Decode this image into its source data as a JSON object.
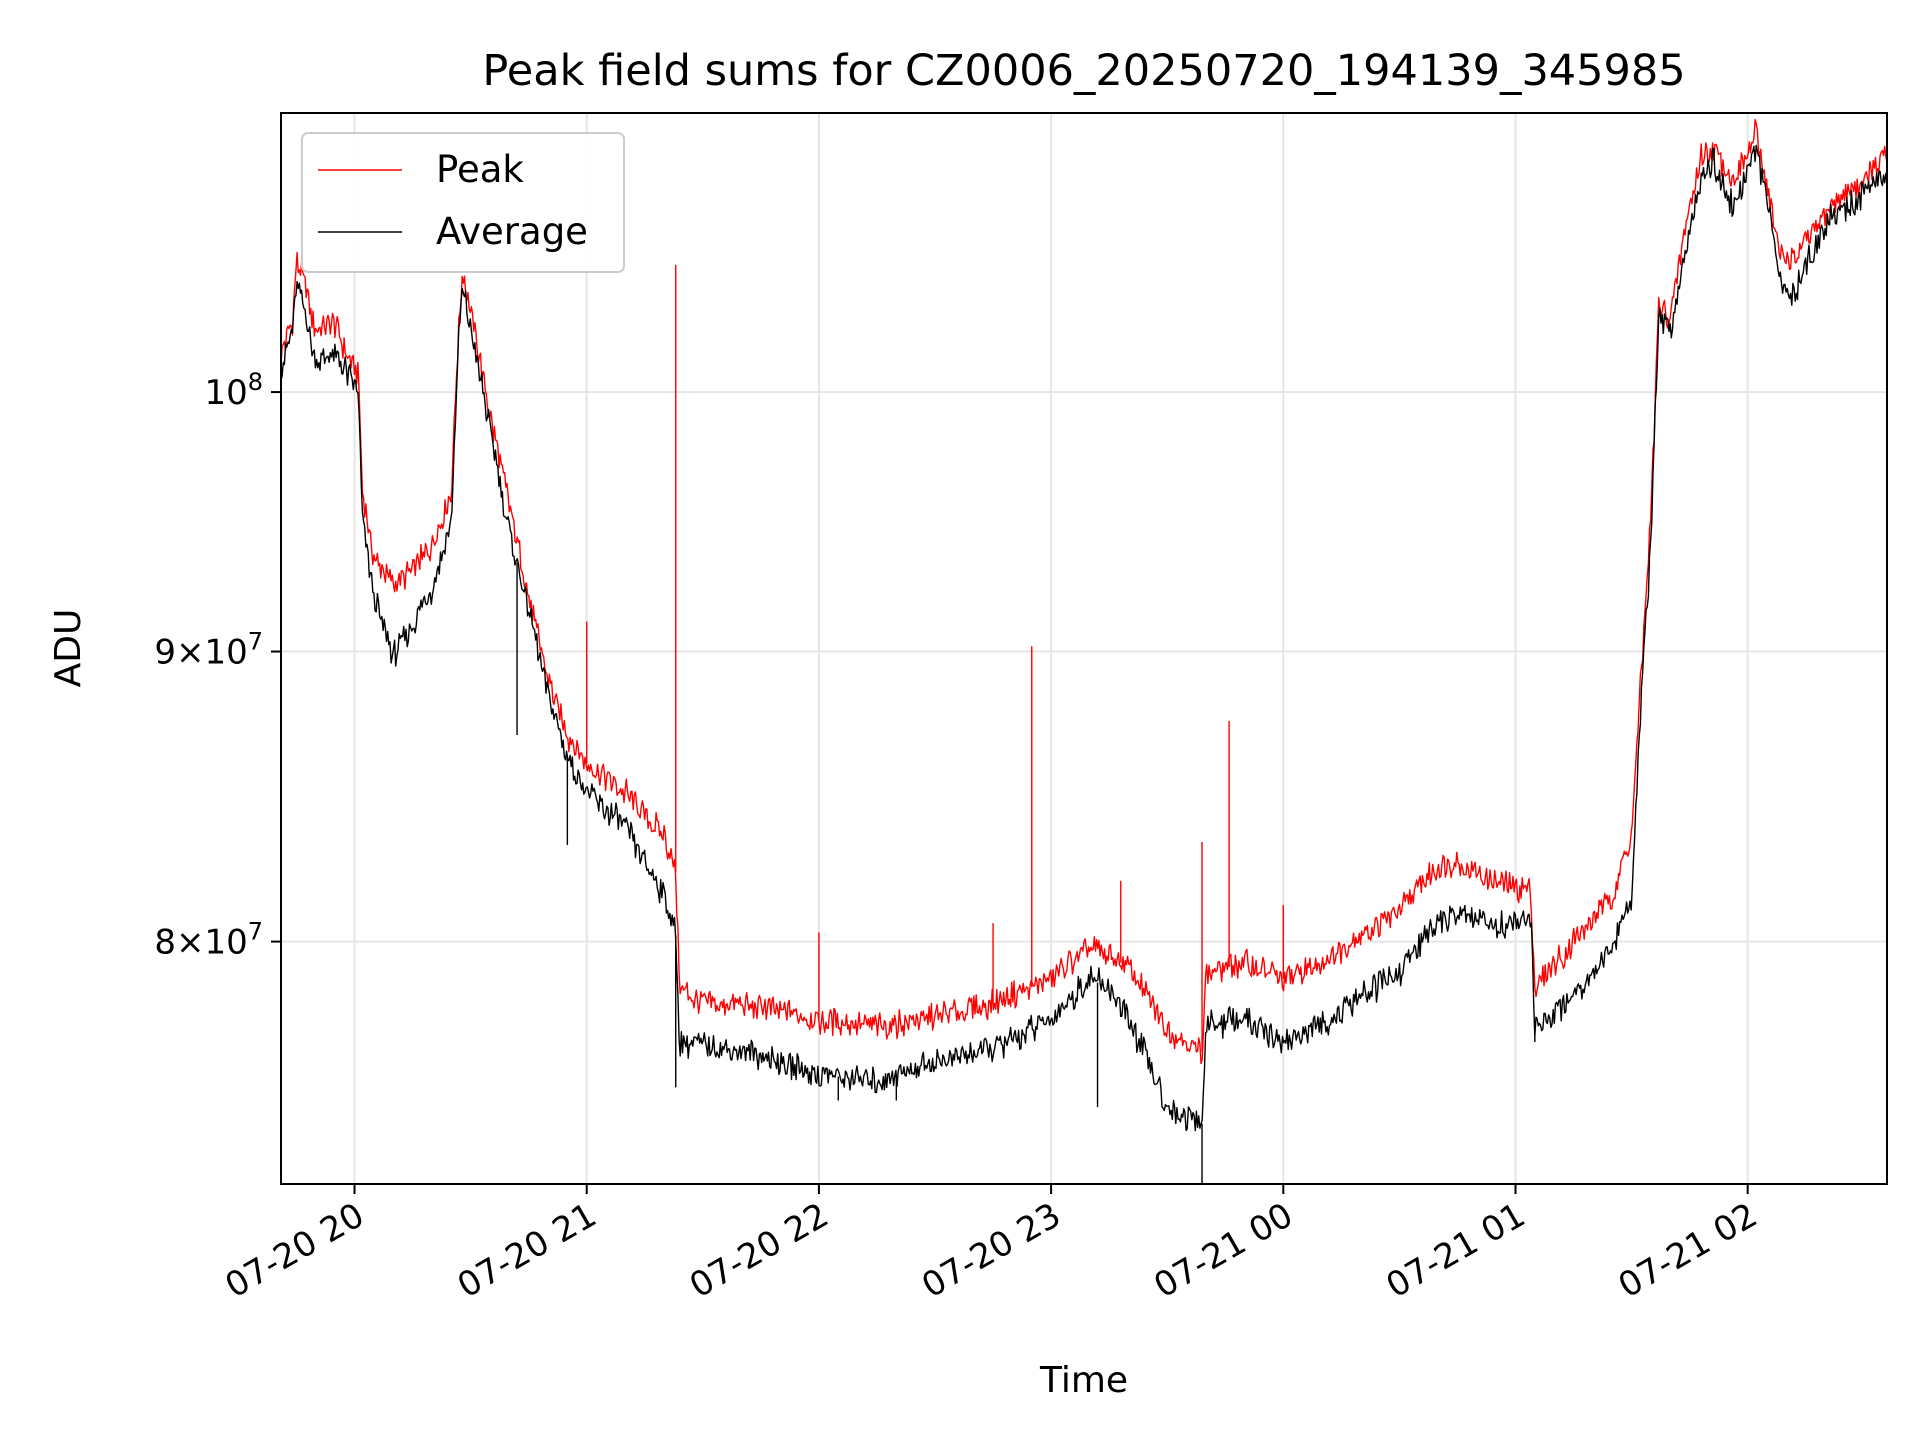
{
  "chart_data": {
    "type": "line",
    "title": "Peak field sums for CZ0006_20250720_194139_345985",
    "xlabel": "Time",
    "ylabel": "ADU",
    "y_scale": "log",
    "xlim": [
      "2025-07-20T19:41",
      "2025-07-21T02:36"
    ],
    "ylim": [
      72500000,
      112000000
    ],
    "x_ticks": [
      {
        "value": "2025-07-20T20:00",
        "label": "07-20 20"
      },
      {
        "value": "2025-07-20T21:00",
        "label": "07-20 21"
      },
      {
        "value": "2025-07-20T22:00",
        "label": "07-20 22"
      },
      {
        "value": "2025-07-20T23:00",
        "label": "07-20 23"
      },
      {
        "value": "2025-07-21T00:00",
        "label": "07-21 00"
      },
      {
        "value": "2025-07-21T01:00",
        "label": "07-21 01"
      },
      {
        "value": "2025-07-21T02:00",
        "label": "07-21 02"
      }
    ],
    "y_ticks": [
      {
        "value": 80000000,
        "label": "8×10⁷",
        "mantissa": "8",
        "exponent": "7"
      },
      {
        "value": 90000000,
        "label": "9×10⁷",
        "mantissa": "9",
        "exponent": "7"
      },
      {
        "value": 100000000,
        "label": "10⁸",
        "mantissa": "",
        "exponent": "8"
      }
    ],
    "grid": true,
    "legend_position": "upper-left",
    "series": [
      {
        "name": "Peak",
        "color": "#ff0000",
        "points": [
          [
            "2025-07-20T19:41",
            101500000
          ],
          [
            "2025-07-20T19:44",
            103000000
          ],
          [
            "2025-07-20T19:45",
            105500000
          ],
          [
            "2025-07-20T19:47",
            104500000
          ],
          [
            "2025-07-20T19:50",
            102500000
          ],
          [
            "2025-07-20T19:55",
            102800000
          ],
          [
            "2025-07-20T19:58",
            101500000
          ],
          [
            "2025-07-20T20:01",
            100800000
          ],
          [
            "2025-07-20T20:02",
            96000000
          ],
          [
            "2025-07-20T20:05",
            93500000
          ],
          [
            "2025-07-20T20:10",
            92500000
          ],
          [
            "2025-07-20T20:15",
            93000000
          ],
          [
            "2025-07-20T20:20",
            94000000
          ],
          [
            "2025-07-20T20:25",
            96000000
          ],
          [
            "2025-07-20T20:27",
            103000000
          ],
          [
            "2025-07-20T20:28",
            105000000
          ],
          [
            "2025-07-20T20:31",
            102500000
          ],
          [
            "2025-07-20T20:35",
            99000000
          ],
          [
            "2025-07-20T20:40",
            95500000
          ],
          [
            "2025-07-20T20:45",
            92000000
          ],
          [
            "2025-07-20T20:50",
            89000000
          ],
          [
            "2025-07-20T20:55",
            87000000
          ],
          [
            "2025-07-20T21:00",
            86000000
          ],
          [
            "2025-07-20T21:10",
            85000000
          ],
          [
            "2025-07-20T21:20",
            83500000
          ],
          [
            "2025-07-20T21:23",
            82300000
          ],
          [
            "2025-07-20T21:24",
            78500000
          ],
          [
            "2025-07-20T21:30",
            78000000
          ],
          [
            "2025-07-20T21:45",
            77900000
          ],
          [
            "2025-07-20T22:00",
            77500000
          ],
          [
            "2025-07-20T22:15",
            77300000
          ],
          [
            "2025-07-20T22:30",
            77600000
          ],
          [
            "2025-07-20T22:45",
            78000000
          ],
          [
            "2025-07-20T23:00",
            78800000
          ],
          [
            "2025-07-20T23:10",
            79800000
          ],
          [
            "2025-07-20T23:15",
            79500000
          ],
          [
            "2025-07-20T23:20",
            79200000
          ],
          [
            "2025-07-20T23:25",
            78200000
          ],
          [
            "2025-07-20T23:30",
            77200000
          ],
          [
            "2025-07-20T23:39",
            76500000
          ],
          [
            "2025-07-20T23:40",
            79000000
          ],
          [
            "2025-07-20T23:50",
            79300000
          ],
          [
            "2025-07-21T00:00",
            78800000
          ],
          [
            "2025-07-21T00:10",
            79300000
          ],
          [
            "2025-07-21T00:20",
            80200000
          ],
          [
            "2025-07-21T00:30",
            81000000
          ],
          [
            "2025-07-21T00:40",
            82500000
          ],
          [
            "2025-07-21T00:45",
            82600000
          ],
          [
            "2025-07-21T00:55",
            81900000
          ],
          [
            "2025-07-21T01:04",
            81700000
          ],
          [
            "2025-07-21T01:05",
            78500000
          ],
          [
            "2025-07-21T01:15",
            80000000
          ],
          [
            "2025-07-21T01:25",
            81500000
          ],
          [
            "2025-07-21T01:30",
            83500000
          ],
          [
            "2025-07-21T01:32",
            88000000
          ],
          [
            "2025-07-21T01:35",
            95000000
          ],
          [
            "2025-07-21T01:37",
            103500000
          ],
          [
            "2025-07-21T01:40",
            103000000
          ],
          [
            "2025-07-21T01:44",
            107000000
          ],
          [
            "2025-07-21T01:48",
            110000000
          ],
          [
            "2025-07-21T01:51",
            110500000
          ],
          [
            "2025-07-21T01:56",
            109000000
          ],
          [
            "2025-07-21T02:00",
            110000000
          ],
          [
            "2025-07-21T02:02",
            111200000
          ],
          [
            "2025-07-21T02:06",
            108000000
          ],
          [
            "2025-07-21T02:08",
            105800000
          ],
          [
            "2025-07-21T02:12",
            105500000
          ],
          [
            "2025-07-21T02:16",
            106500000
          ],
          [
            "2025-07-21T02:22",
            108000000
          ],
          [
            "2025-07-21T02:30",
            109000000
          ],
          [
            "2025-07-21T02:36",
            110000000
          ]
        ],
        "spikes": [
          [
            "2025-07-20T21:23",
            105300000
          ],
          [
            "2025-07-20T22:55",
            90200000
          ],
          [
            "2025-07-20T23:39",
            83300000
          ],
          [
            "2025-07-20T23:46",
            87500000
          ],
          [
            "2025-07-20T21:00",
            91100000
          ],
          [
            "2025-07-20T22:00",
            80300000
          ],
          [
            "2025-07-21T00:00",
            81200000
          ],
          [
            "2025-07-20T22:45",
            80600000
          ],
          [
            "2025-07-20T23:18",
            82000000
          ]
        ]
      },
      {
        "name": "Average",
        "color": "#000000",
        "points": [
          [
            "2025-07-20T19:41",
            101000000
          ],
          [
            "2025-07-20T19:44",
            102500000
          ],
          [
            "2025-07-20T19:45",
            104500000
          ],
          [
            "2025-07-20T19:47",
            103500000
          ],
          [
            "2025-07-20T19:50",
            101200000
          ],
          [
            "2025-07-20T19:55",
            101500000
          ],
          [
            "2025-07-20T19:58",
            100800000
          ],
          [
            "2025-07-20T20:01",
            100000000
          ],
          [
            "2025-07-20T20:02",
            95000000
          ],
          [
            "2025-07-20T20:05",
            92000000
          ],
          [
            "2025-07-20T20:10",
            89800000
          ],
          [
            "2025-07-20T20:15",
            91000000
          ],
          [
            "2025-07-20T20:20",
            92300000
          ],
          [
            "2025-07-20T20:25",
            94800000
          ],
          [
            "2025-07-20T20:27",
            102500000
          ],
          [
            "2025-07-20T20:28",
            104200000
          ],
          [
            "2025-07-20T20:31",
            101800000
          ],
          [
            "2025-07-20T20:35",
            98500000
          ],
          [
            "2025-07-20T20:40",
            94500000
          ],
          [
            "2025-07-20T20:45",
            91500000
          ],
          [
            "2025-07-20T20:50",
            88500000
          ],
          [
            "2025-07-20T20:55",
            86200000
          ],
          [
            "2025-07-20T21:00",
            85000000
          ],
          [
            "2025-07-20T21:10",
            83800000
          ],
          [
            "2025-07-20T21:20",
            81500000
          ],
          [
            "2025-07-20T21:23",
            80200000
          ],
          [
            "2025-07-20T21:24",
            76800000
          ],
          [
            "2025-07-20T21:30",
            76700000
          ],
          [
            "2025-07-20T21:45",
            76400000
          ],
          [
            "2025-07-20T22:00",
            75800000
          ],
          [
            "2025-07-20T22:15",
            75600000
          ],
          [
            "2025-07-20T22:30",
            76200000
          ],
          [
            "2025-07-20T22:45",
            76600000
          ],
          [
            "2025-07-20T23:00",
            77500000
          ],
          [
            "2025-07-20T23:10",
            78800000
          ],
          [
            "2025-07-20T23:15",
            78500000
          ],
          [
            "2025-07-20T23:20",
            77500000
          ],
          [
            "2025-07-20T23:25",
            76200000
          ],
          [
            "2025-07-20T23:30",
            74800000
          ],
          [
            "2025-07-20T23:39",
            74300000
          ],
          [
            "2025-07-20T23:40",
            77300000
          ],
          [
            "2025-07-20T23:50",
            77500000
          ],
          [
            "2025-07-21T00:00",
            76800000
          ],
          [
            "2025-07-21T00:10",
            77300000
          ],
          [
            "2025-07-21T00:20",
            78200000
          ],
          [
            "2025-07-21T00:30",
            79000000
          ],
          [
            "2025-07-21T00:40",
            80700000
          ],
          [
            "2025-07-21T00:45",
            80900000
          ],
          [
            "2025-07-21T00:55",
            80500000
          ],
          [
            "2025-07-21T01:04",
            80700000
          ],
          [
            "2025-07-21T01:05",
            77200000
          ],
          [
            "2025-07-21T01:15",
            78300000
          ],
          [
            "2025-07-21T01:25",
            79800000
          ],
          [
            "2025-07-21T01:30",
            81500000
          ],
          [
            "2025-07-21T01:32",
            87000000
          ],
          [
            "2025-07-21T01:35",
            94000000
          ],
          [
            "2025-07-21T01:37",
            103000000
          ],
          [
            "2025-07-21T01:40",
            102500000
          ],
          [
            "2025-07-21T01:44",
            106000000
          ],
          [
            "2025-07-21T01:48",
            109300000
          ],
          [
            "2025-07-21T01:51",
            109800000
          ],
          [
            "2025-07-21T01:56",
            107800000
          ],
          [
            "2025-07-21T02:00",
            109300000
          ],
          [
            "2025-07-21T02:02",
            110500000
          ],
          [
            "2025-07-21T02:06",
            107200000
          ],
          [
            "2025-07-21T02:08",
            104500000
          ],
          [
            "2025-07-21T02:12",
            104000000
          ],
          [
            "2025-07-21T02:16",
            105800000
          ],
          [
            "2025-07-21T02:22",
            107500000
          ],
          [
            "2025-07-21T02:30",
            108300000
          ],
          [
            "2025-07-21T02:36",
            109500000
          ]
        ],
        "spikes": [
          [
            "2025-07-20T23:39",
            72500000
          ],
          [
            "2025-07-20T23:12",
            74800000
          ],
          [
            "2025-07-20T21:23",
            75400000
          ],
          [
            "2025-07-20T20:55",
            83200000
          ],
          [
            "2025-07-20T20:42",
            87000000
          ],
          [
            "2025-07-21T01:05",
            76800000
          ],
          [
            "2025-07-20T22:05",
            75000000
          ],
          [
            "2025-07-20T22:20",
            75000000
          ]
        ]
      }
    ]
  }
}
